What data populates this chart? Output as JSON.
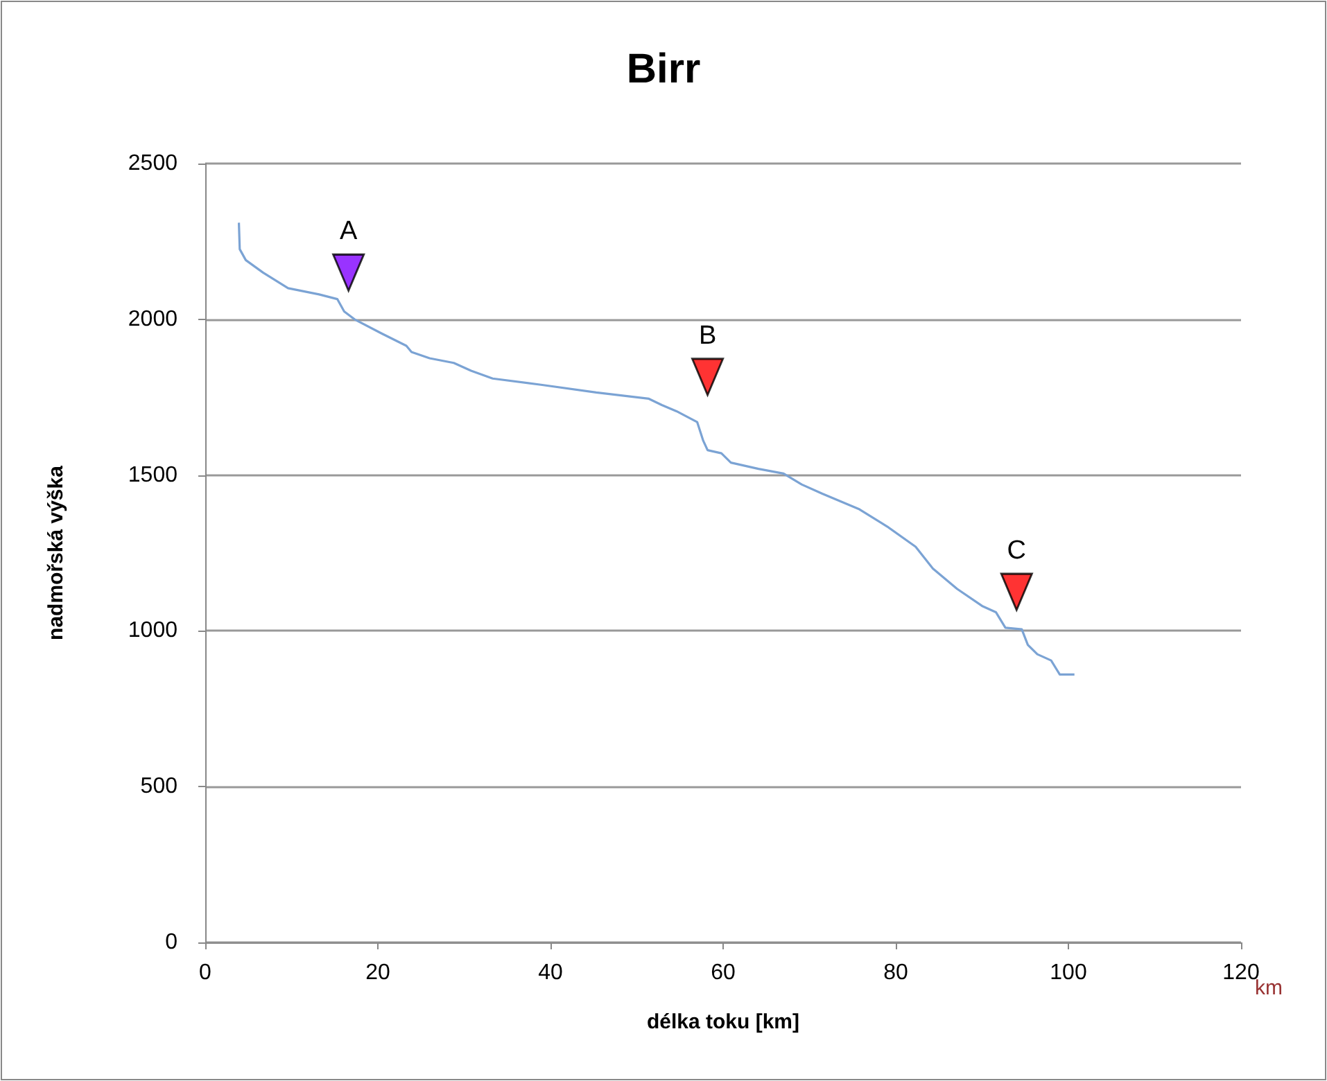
{
  "chart_data": {
    "type": "line",
    "title": "Birr",
    "xlabel": "délka toku [km]",
    "ylabel": "nadmořská výška",
    "series": [
      {
        "color": "#7ba3d4",
        "x": [
          3.9,
          4.0,
          4.7,
          6.7,
          9.6,
          13.2,
          15.3,
          16.1,
          17.3,
          20.4,
          23.3,
          23.9,
          26.0,
          28.8,
          30.8,
          33.3,
          38.9,
          45.3,
          51.4,
          52.9,
          54.6,
          57.0,
          57.7,
          58.2,
          59.8,
          60.9,
          64.1,
          67.0,
          69.1,
          71.5,
          75.8,
          79.0,
          82.3,
          84.3,
          87.1,
          90.0,
          91.6,
          92.7,
          94.6,
          95.3,
          96.4,
          98.0,
          99.0,
          100.7
        ],
        "values": [
          2310,
          2225,
          2190,
          2150,
          2100,
          2080,
          2065,
          2025,
          2000,
          1955,
          1915,
          1895,
          1875,
          1860,
          1835,
          1810,
          1790,
          1765,
          1745,
          1725,
          1705,
          1670,
          1610,
          1580,
          1570,
          1540,
          1520,
          1505,
          1470,
          1440,
          1390,
          1335,
          1270,
          1200,
          1135,
          1080,
          1060,
          1010,
          1005,
          955,
          925,
          905,
          860,
          860
        ]
      },
      {
        "type": "scatter",
        "marker": "triangle",
        "x": [
          16.6
        ],
        "values": [
          2150
        ],
        "color": "#8000ff"
      },
      {
        "type": "scatter",
        "marker": "triangle",
        "x": [
          58.2
        ],
        "values": [
          1815
        ],
        "color": "#ff0000"
      },
      {
        "type": "scatter",
        "marker": "triangle",
        "x": [
          94.0
        ],
        "values": [
          1125
        ],
        "color": "#ff0000"
      }
    ],
    "annotations": [
      {
        "text": "A",
        "x": 16.6,
        "y": 2150
      },
      {
        "text": "B",
        "x": 58.2,
        "y": 1815
      },
      {
        "text": "C",
        "x": 94.0,
        "y": 1125
      },
      "km"
    ],
    "xlim": [
      0,
      120
    ],
    "xticks": [
      0,
      20,
      40,
      60,
      80,
      100,
      120
    ],
    "ylim": [
      0,
      2500
    ],
    "yticks": [
      0,
      500,
      1000,
      1500,
      2000,
      2500
    ],
    "grid": "y"
  }
}
